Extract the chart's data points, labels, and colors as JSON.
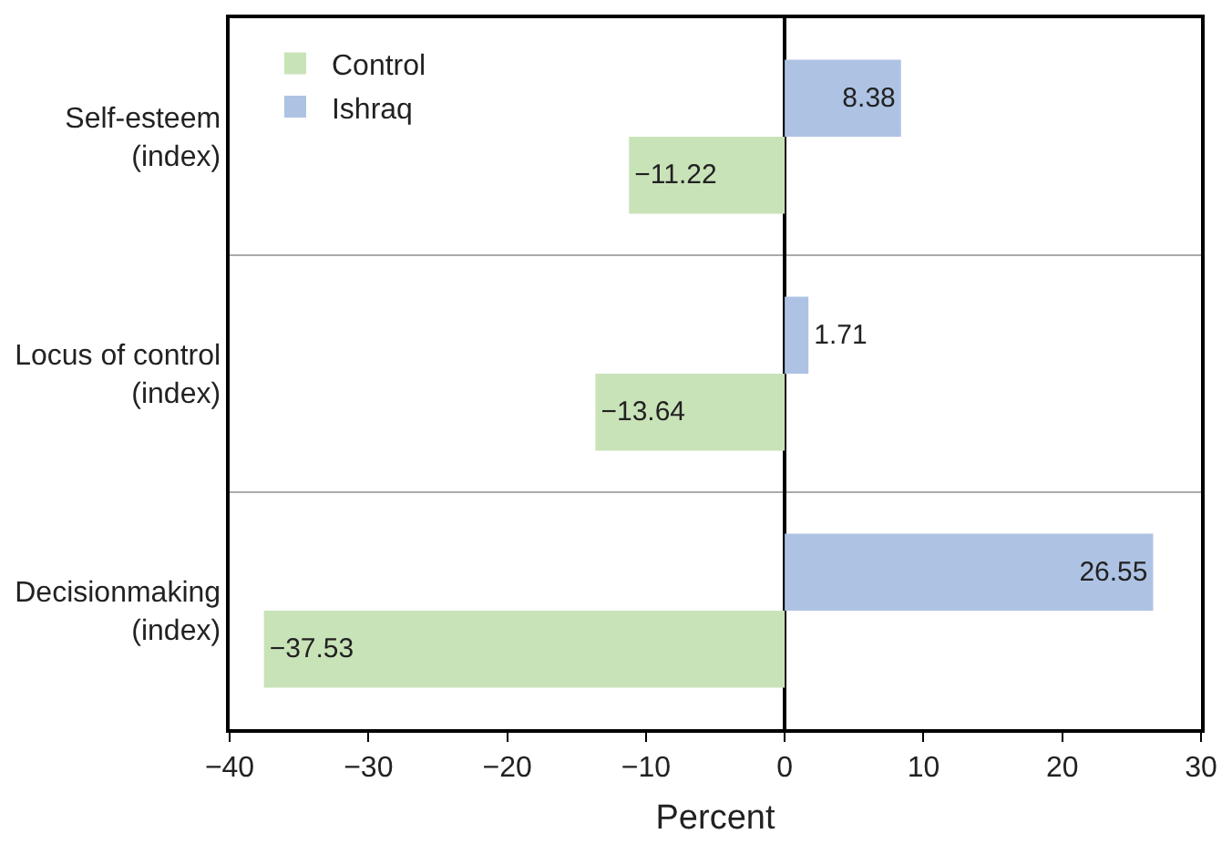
{
  "chart_data": {
    "type": "bar",
    "orientation": "horizontal",
    "xlabel": "Percent",
    "categories": [
      "Self-esteem\n(index)",
      "Locus of control\n(index)",
      "Decisionmaking\n(index)"
    ],
    "series": [
      {
        "name": "Ishraq",
        "color": "#aec3e3",
        "values": [
          8.38,
          1.71,
          26.55
        ],
        "value_labels": [
          "8.38",
          "1.71",
          "26.55"
        ]
      },
      {
        "name": "Control",
        "color": "#c9e3b8",
        "values": [
          -11.22,
          -13.64,
          -37.53
        ],
        "value_labels": [
          "−11.22",
          "−13.64",
          "−37.53"
        ]
      }
    ],
    "xlim": [
      -40,
      30
    ],
    "xticks": [
      {
        "value": -40,
        "label": "−40"
      },
      {
        "value": -30,
        "label": "−30"
      },
      {
        "value": -20,
        "label": "−20"
      },
      {
        "value": -10,
        "label": "−10"
      },
      0,
      10,
      20,
      30
    ],
    "grid": "y",
    "legend": "top left"
  }
}
